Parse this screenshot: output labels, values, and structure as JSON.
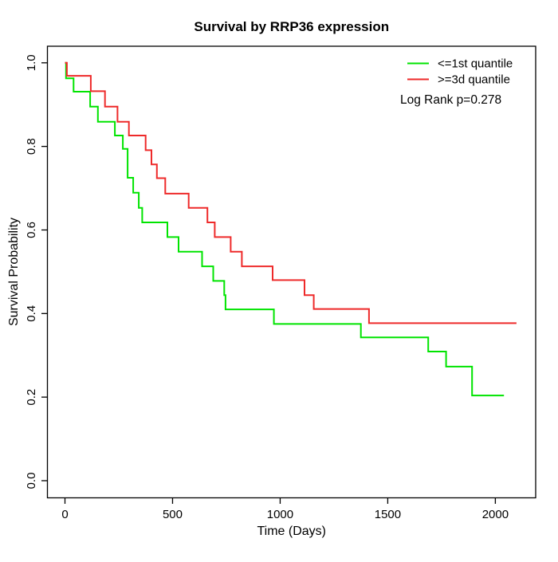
{
  "chart_data": {
    "type": "line",
    "subtype": "kaplan-meier-step",
    "title": "Survival by RRP36 expression",
    "xlabel": "Time (Days)",
    "ylabel": "Survival Probability",
    "annotation": "Log Rank p=0.278",
    "grid": false,
    "legend_position": "top-right",
    "xlim": [
      -82,
      2187
    ],
    "ylim": [
      -0.04,
      1.04
    ],
    "x_ticks": [
      {
        "value": 0,
        "label": "0"
      },
      {
        "value": 500,
        "label": "500"
      },
      {
        "value": 1000,
        "label": "1000"
      },
      {
        "value": 1500,
        "label": "1500"
      },
      {
        "value": 2000,
        "label": "2000"
      }
    ],
    "y_ticks": [
      {
        "value": 0.0,
        "label": "0.0"
      },
      {
        "value": 0.2,
        "label": "0.2"
      },
      {
        "value": 0.4,
        "label": "0.4"
      },
      {
        "value": 0.6,
        "label": "0.6"
      },
      {
        "value": 0.8,
        "label": "0.8"
      },
      {
        "value": 1.0,
        "label": "1.0"
      }
    ],
    "series": [
      {
        "name": "<=1st quantile",
        "color": "#00E400",
        "end_time": 2040,
        "points": [
          [
            0,
            1.0
          ],
          [
            5,
            0.963
          ],
          [
            40,
            0.931
          ],
          [
            117,
            0.895
          ],
          [
            153,
            0.859
          ],
          [
            232,
            0.826
          ],
          [
            269,
            0.794
          ],
          [
            291,
            0.725
          ],
          [
            317,
            0.689
          ],
          [
            343,
            0.653
          ],
          [
            359,
            0.618
          ],
          [
            476,
            0.583
          ],
          [
            528,
            0.548
          ],
          [
            637,
            0.513
          ],
          [
            689,
            0.478
          ],
          [
            740,
            0.444
          ],
          [
            746,
            0.41
          ],
          [
            971,
            0.375
          ],
          [
            1375,
            0.343
          ],
          [
            1688,
            0.309
          ],
          [
            1771,
            0.273
          ],
          [
            1892,
            0.204
          ]
        ]
      },
      {
        "name": ">=3d quantile",
        "color": "#EE2A2A",
        "end_time": 2098,
        "points": [
          [
            0,
            1.0
          ],
          [
            9,
            0.969
          ],
          [
            120,
            0.932
          ],
          [
            186,
            0.895
          ],
          [
            244,
            0.859
          ],
          [
            297,
            0.826
          ],
          [
            375,
            0.791
          ],
          [
            402,
            0.757
          ],
          [
            427,
            0.724
          ],
          [
            466,
            0.687
          ],
          [
            575,
            0.653
          ],
          [
            662,
            0.618
          ],
          [
            696,
            0.583
          ],
          [
            770,
            0.548
          ],
          [
            822,
            0.513
          ],
          [
            965,
            0.48
          ],
          [
            1113,
            0.444
          ],
          [
            1156,
            0.411
          ],
          [
            1413,
            0.377
          ]
        ]
      }
    ]
  }
}
